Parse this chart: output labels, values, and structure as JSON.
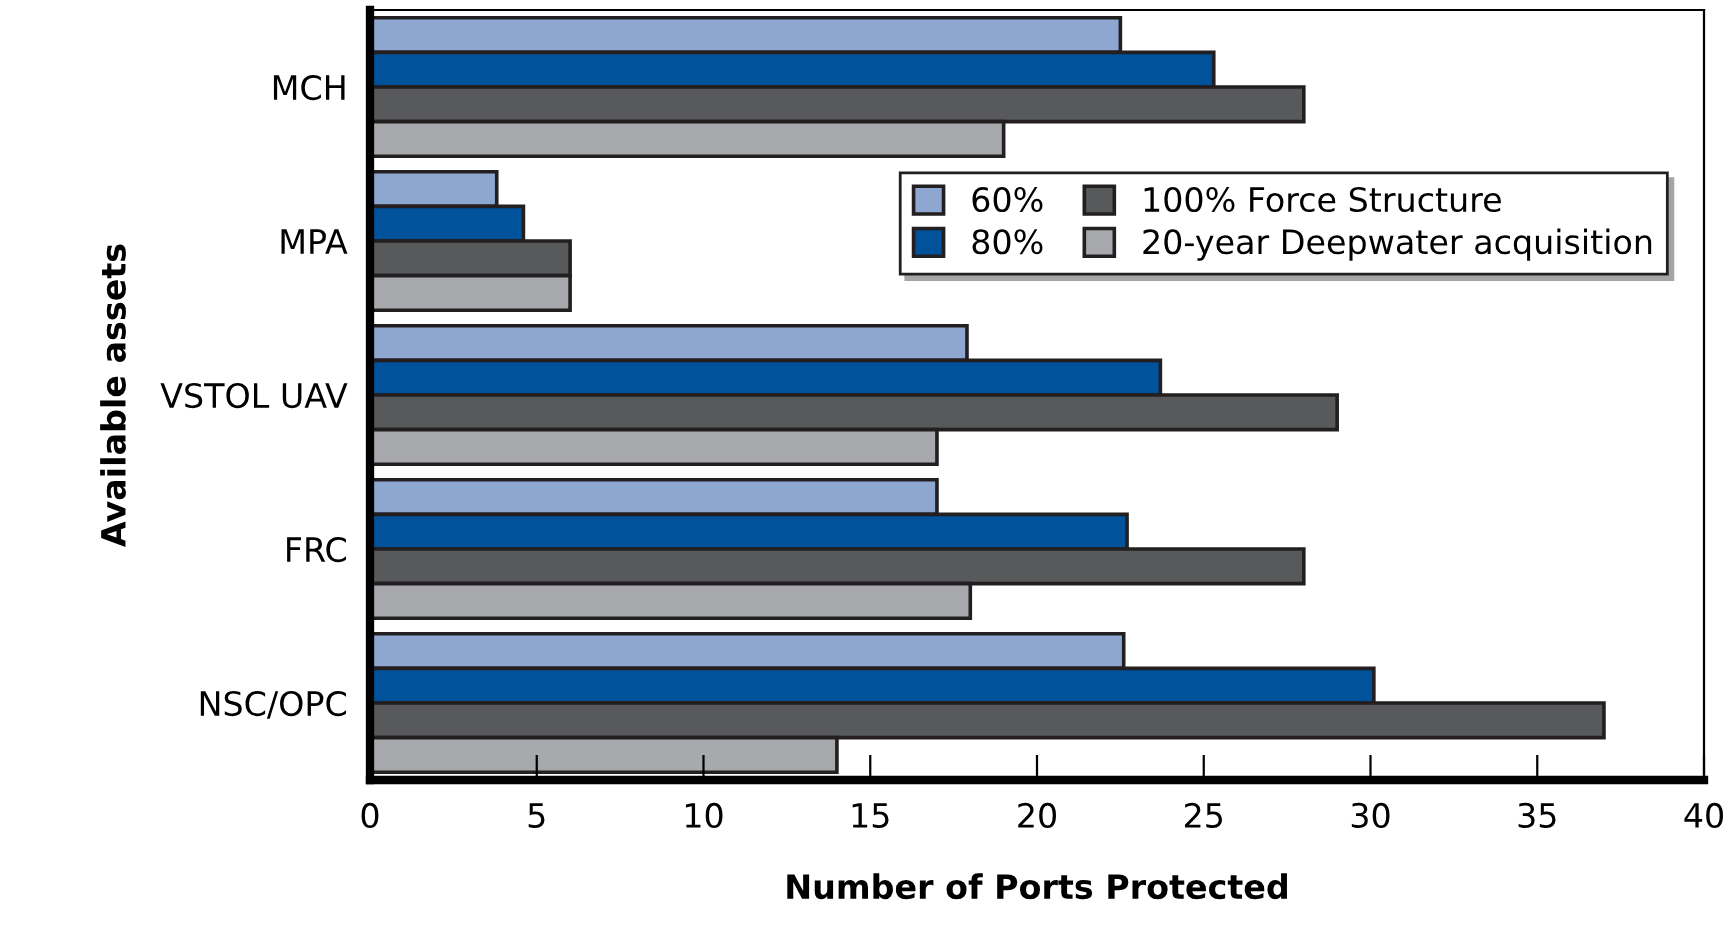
{
  "chart_data": {
    "type": "bar",
    "orientation": "horizontal",
    "xlabel": "Number of Ports Protected",
    "ylabel": "Available assets",
    "categories": [
      "MCH",
      "MPA",
      "VSTOL UAV",
      "FRC",
      "NSC/OPC"
    ],
    "series": [
      {
        "name": "60%",
        "color": "#8ea7d0",
        "values": [
          22.5,
          3.8,
          17.9,
          17,
          22.6
        ]
      },
      {
        "name": "80%",
        "color": "#00529b",
        "values": [
          25.3,
          4.6,
          23.7,
          22.7,
          30.1
        ]
      },
      {
        "name": "100% Force Structure",
        "color": "#58595b",
        "values": [
          28,
          6,
          29,
          28,
          37
        ]
      },
      {
        "name": "20-year Deepwater acquisition",
        "color": "#a7a9ac",
        "values": [
          19,
          6,
          17,
          18,
          14
        ]
      }
    ],
    "xlim": [
      0,
      40
    ],
    "xticks": [
      0,
      5,
      10,
      15,
      20,
      25,
      30,
      35,
      40
    ],
    "grid": false,
    "legend": "top right"
  }
}
